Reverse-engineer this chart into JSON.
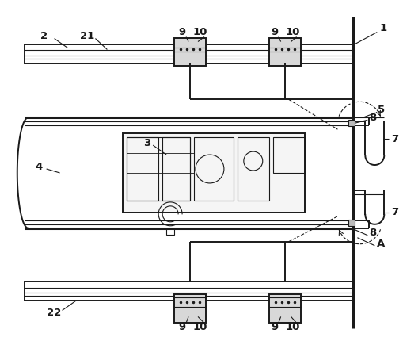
{
  "bg_color": "#ffffff",
  "line_color": "#1a1a1a",
  "lw_thick": 2.2,
  "lw_medium": 1.4,
  "lw_thin": 0.8,
  "fig_width": 5.09,
  "fig_height": 4.3
}
